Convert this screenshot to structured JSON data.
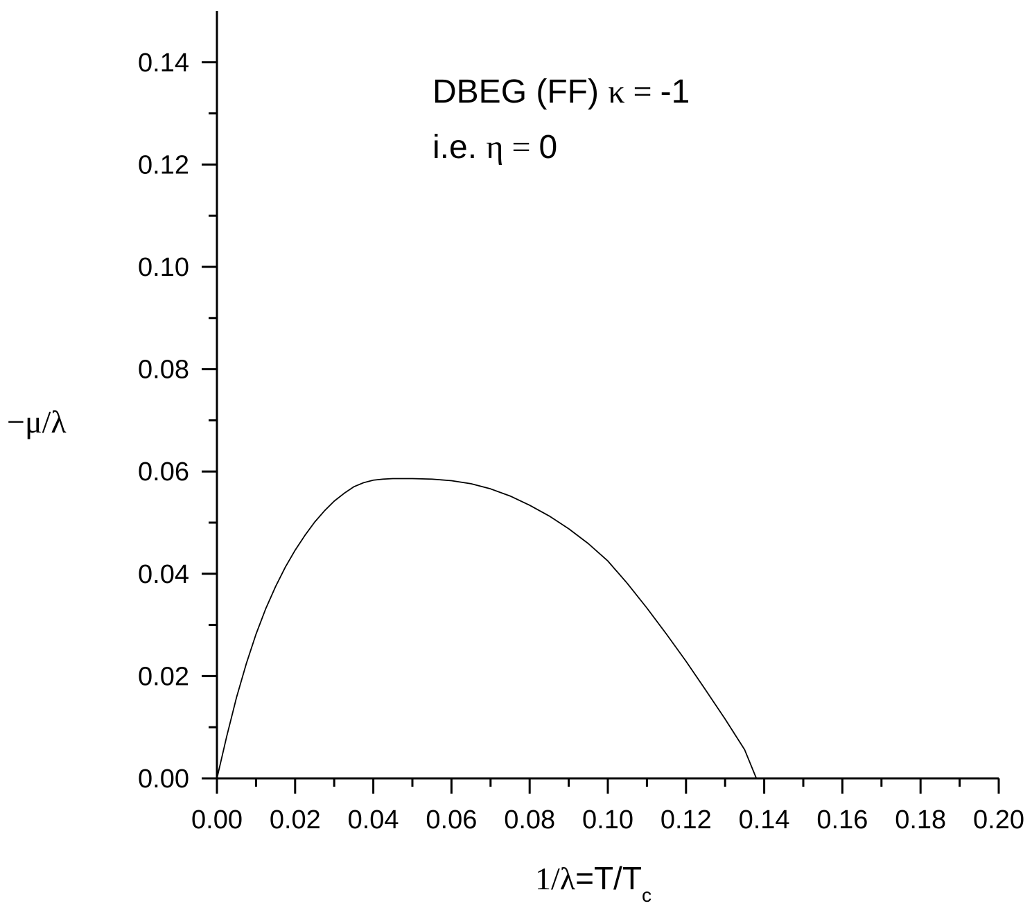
{
  "chart_data": {
    "type": "line",
    "title": "",
    "annotations": {
      "line1": {
        "text": "DBEG (FF) ",
        "greek": "κ = ",
        "value": "-1"
      },
      "line2": {
        "text": "i.e.  ",
        "greek": "η = ",
        "value": "0"
      }
    },
    "xlabel": {
      "prefix": "1/λ",
      "main": "=T/T",
      "sub": "c"
    },
    "ylabel": "−μ/λ",
    "xlim": [
      0.0,
      0.2
    ],
    "ylim": [
      0.0,
      0.15
    ],
    "x_ticks": [
      "0.00",
      "0.02",
      "0.04",
      "0.06",
      "0.08",
      "0.10",
      "0.12",
      "0.14",
      "0.16",
      "0.18",
      "0.20"
    ],
    "y_ticks": [
      "0.00",
      "0.02",
      "0.04",
      "0.06",
      "0.08",
      "0.10",
      "0.12",
      "0.14"
    ],
    "grid": false,
    "legend": "none",
    "series": [
      {
        "x": [
          0.0,
          0.0025,
          0.005,
          0.0075,
          0.01,
          0.0125,
          0.015,
          0.0175,
          0.02,
          0.0225,
          0.025,
          0.0275,
          0.03,
          0.0325,
          0.035,
          0.0375,
          0.04,
          0.0425,
          0.045,
          0.0475,
          0.05,
          0.055,
          0.06,
          0.065,
          0.07,
          0.075,
          0.08,
          0.085,
          0.09,
          0.095,
          0.1,
          0.105,
          0.11,
          0.115,
          0.12,
          0.125,
          0.13,
          0.135,
          0.138
        ],
        "y": [
          0.0,
          0.0082,
          0.0158,
          0.0224,
          0.0282,
          0.0332,
          0.0375,
          0.0413,
          0.0446,
          0.0475,
          0.0501,
          0.0523,
          0.0542,
          0.0557,
          0.057,
          0.0578,
          0.0583,
          0.0585,
          0.0586,
          0.0586,
          0.0586,
          0.0585,
          0.0582,
          0.0576,
          0.0566,
          0.0552,
          0.0534,
          0.0513,
          0.0488,
          0.0459,
          0.0425,
          0.0381,
          0.0333,
          0.0282,
          0.0229,
          0.0173,
          0.0116,
          0.0056,
          0.0
        ]
      }
    ],
    "line_color": "#000000"
  }
}
